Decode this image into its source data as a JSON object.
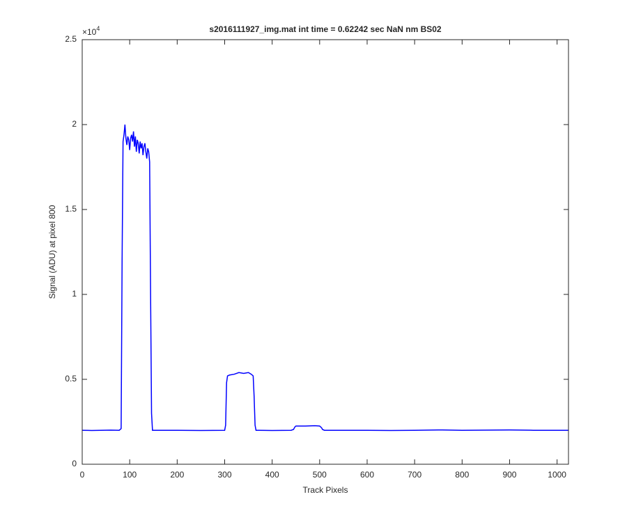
{
  "chart_data": {
    "type": "line",
    "title": "s2016111927_img.mat int time = 0.62242 sec  NaN nm BS02",
    "x_label": "Track Pixels",
    "y_label": "Signal (ADU) at pixel 800",
    "y_exponent": {
      "base": "×10",
      "power": "4"
    },
    "xlim": [
      0,
      1024
    ],
    "ylim": [
      0,
      25000
    ],
    "xticks": [
      0,
      100,
      200,
      300,
      400,
      500,
      600,
      700,
      800,
      900,
      1000
    ],
    "yticks": [
      0,
      {
        "value": 5000,
        "label": "0.5"
      },
      {
        "value": 10000,
        "label": "1"
      },
      {
        "value": 15000,
        "label": "1.5"
      },
      {
        "value": 20000,
        "label": "2"
      },
      {
        "value": 25000,
        "label": "2.5"
      }
    ],
    "grid": false,
    "series": [
      {
        "color": "#0000ff",
        "x": [
          0,
          20,
          40,
          60,
          78,
          82,
          84,
          86,
          88,
          90,
          92,
          94,
          96,
          98,
          100,
          102,
          104,
          106,
          108,
          110,
          112,
          114,
          116,
          118,
          120,
          122,
          124,
          126,
          128,
          130,
          132,
          134,
          136,
          138,
          140,
          142,
          144,
          146,
          148,
          160,
          200,
          250,
          300,
          302,
          304,
          306,
          310,
          320,
          330,
          340,
          350,
          356,
          360,
          362,
          364,
          366,
          370,
          400,
          440,
          445,
          448,
          450,
          470,
          490,
          500,
          504,
          506,
          510,
          550,
          600,
          650,
          700,
          750,
          800,
          850,
          900,
          950,
          1000,
          1024
        ],
        "values": [
          2000,
          1990,
          2000,
          2010,
          2000,
          2100,
          12000,
          19000,
          19400,
          20000,
          19200,
          18800,
          19300,
          19100,
          18500,
          19200,
          19400,
          19000,
          19600,
          18700,
          19300,
          18400,
          19100,
          18900,
          18300,
          19000,
          18600,
          18900,
          18200,
          18700,
          18900,
          18400,
          18000,
          18600,
          18400,
          17800,
          10000,
          3000,
          2000,
          2000,
          2000,
          1990,
          2000,
          2300,
          4800,
          5200,
          5250,
          5300,
          5400,
          5350,
          5400,
          5300,
          5200,
          4000,
          2300,
          2000,
          2000,
          1990,
          2000,
          2050,
          2200,
          2250,
          2250,
          2270,
          2250,
          2150,
          2050,
          2000,
          2000,
          2000,
          1990,
          2000,
          2020,
          2000,
          2010,
          2020,
          2000,
          2000,
          2000
        ]
      }
    ]
  }
}
